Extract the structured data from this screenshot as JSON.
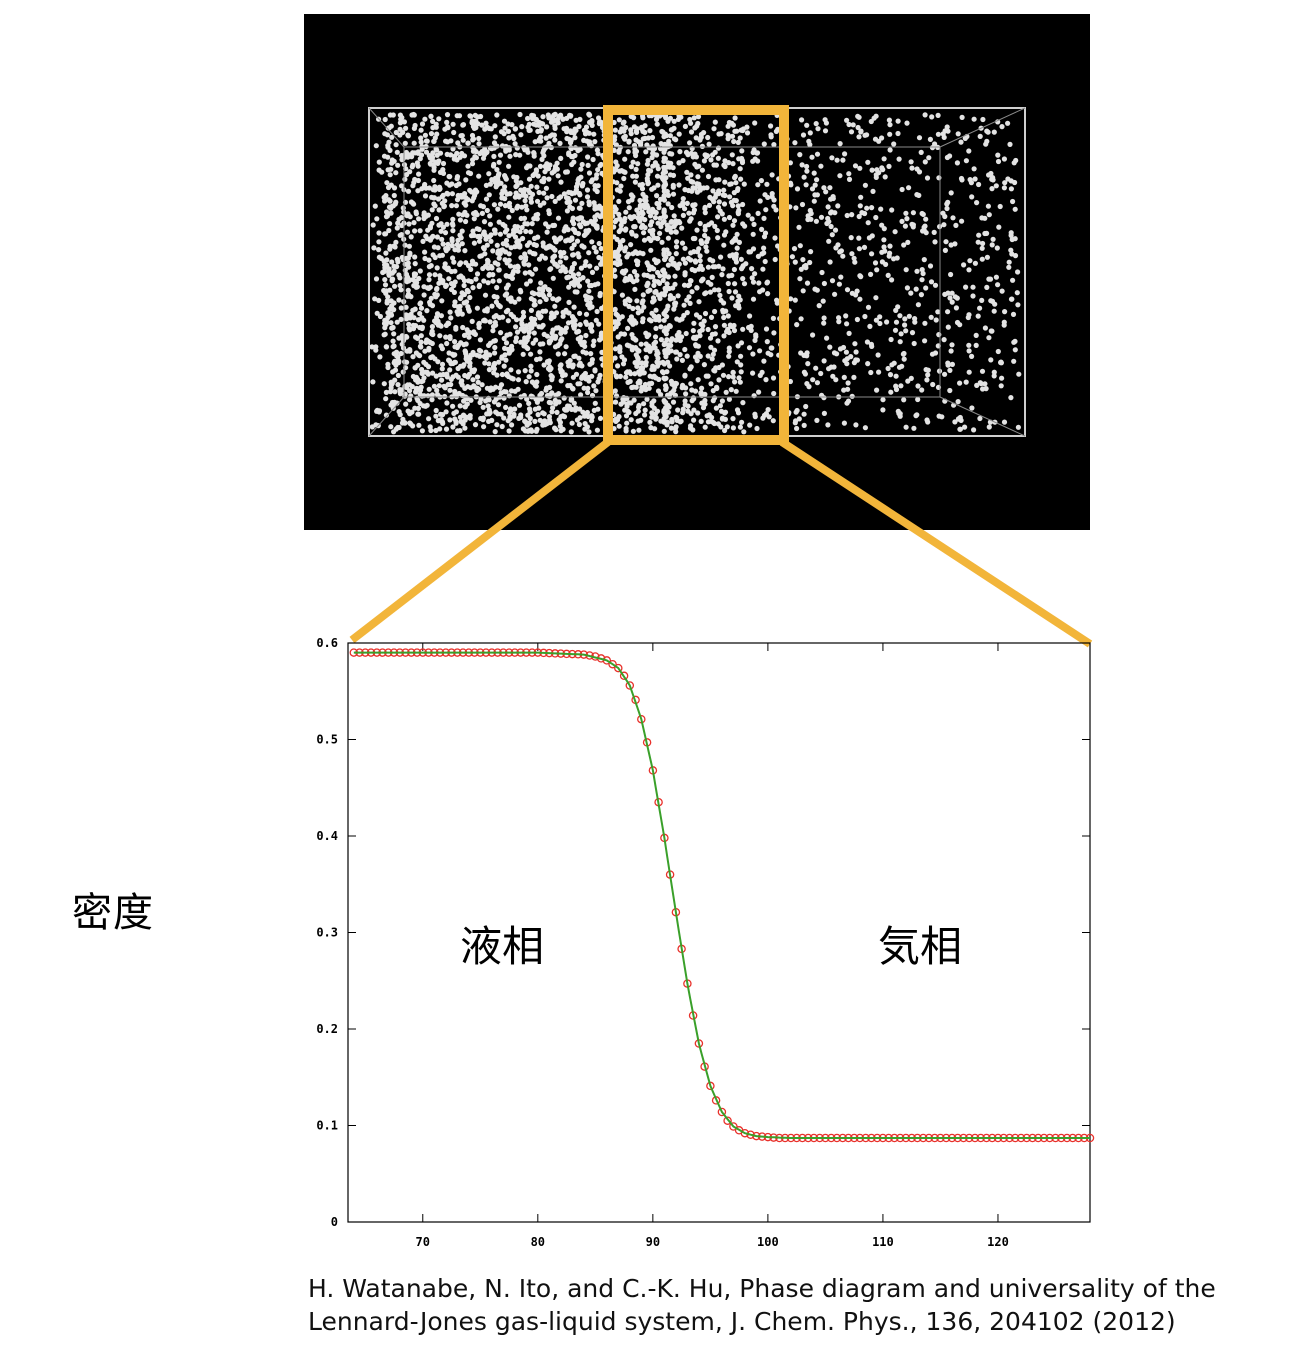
{
  "labels": {
    "ylabel": "密度",
    "liquid": "液相",
    "gas": "気相"
  },
  "citation": {
    "line1": "H. Watanabe, N. Ito, and C.-K. Hu, Phase diagram and universality of the",
    "line2": "Lennard-Jones gas-liquid system, J. Chem. Phys., 136, 204102 (2012)"
  },
  "colors": {
    "highlight": "#f2b53a",
    "data_points": "#e8302a",
    "fit_line": "#3aa02a",
    "simulation_background": "#000000",
    "particles": "#e6e6e6"
  },
  "chart_data": {
    "type": "line",
    "title": "",
    "xlabel": "",
    "ylabel": "密度",
    "xlim": [
      63.5,
      128
    ],
    "ylim": [
      0,
      0.6
    ],
    "x_ticks": [
      70,
      80,
      90,
      100,
      110,
      120
    ],
    "y_ticks": [
      0,
      0.1,
      0.2,
      0.3,
      0.4,
      0.5,
      0.6
    ],
    "y_tick_labels": [
      "0",
      "0.1",
      "0.2",
      "0.3",
      "0.4",
      "0.5",
      "0.6"
    ],
    "grid": false,
    "series": [
      {
        "style": "markers",
        "color": "#e8302a",
        "x": [
          64,
          66,
          68,
          70,
          72,
          74,
          76,
          78,
          80,
          82,
          84,
          85,
          86,
          87,
          87.5,
          88,
          88.5,
          89,
          89.5,
          90,
          90.5,
          91,
          91.5,
          92,
          92.5,
          93,
          93.5,
          94,
          94.5,
          95,
          95.5,
          96,
          96.5,
          97,
          97.5,
          98,
          99,
          100,
          101,
          102,
          104,
          106,
          108,
          110,
          112,
          114,
          116,
          118,
          120,
          122,
          124,
          126,
          128
        ],
        "y": [
          0.59,
          0.59,
          0.59,
          0.59,
          0.59,
          0.59,
          0.59,
          0.59,
          0.59,
          0.589,
          0.588,
          0.586,
          0.582,
          0.574,
          0.566,
          0.556,
          0.541,
          0.521,
          0.497,
          0.468,
          0.435,
          0.398,
          0.36,
          0.321,
          0.283,
          0.247,
          0.214,
          0.185,
          0.161,
          0.141,
          0.126,
          0.114,
          0.105,
          0.099,
          0.095,
          0.092,
          0.089,
          0.088,
          0.087,
          0.087,
          0.087,
          0.087,
          0.087,
          0.087,
          0.087,
          0.087,
          0.087,
          0.087,
          0.087,
          0.087,
          0.087,
          0.087,
          0.087
        ]
      },
      {
        "style": "line",
        "color": "#3aa02a",
        "x": [
          64,
          68,
          72,
          76,
          80,
          84,
          86,
          87,
          88,
          89,
          90,
          91,
          92,
          93,
          94,
          95,
          96,
          97,
          98,
          99,
          100,
          102,
          106,
          110,
          116,
          122,
          128
        ],
        "y": [
          0.59,
          0.59,
          0.59,
          0.59,
          0.59,
          0.588,
          0.582,
          0.574,
          0.556,
          0.521,
          0.468,
          0.398,
          0.321,
          0.247,
          0.185,
          0.141,
          0.114,
          0.099,
          0.092,
          0.089,
          0.088,
          0.087,
          0.087,
          0.087,
          0.087,
          0.087,
          0.087
        ]
      }
    ]
  }
}
